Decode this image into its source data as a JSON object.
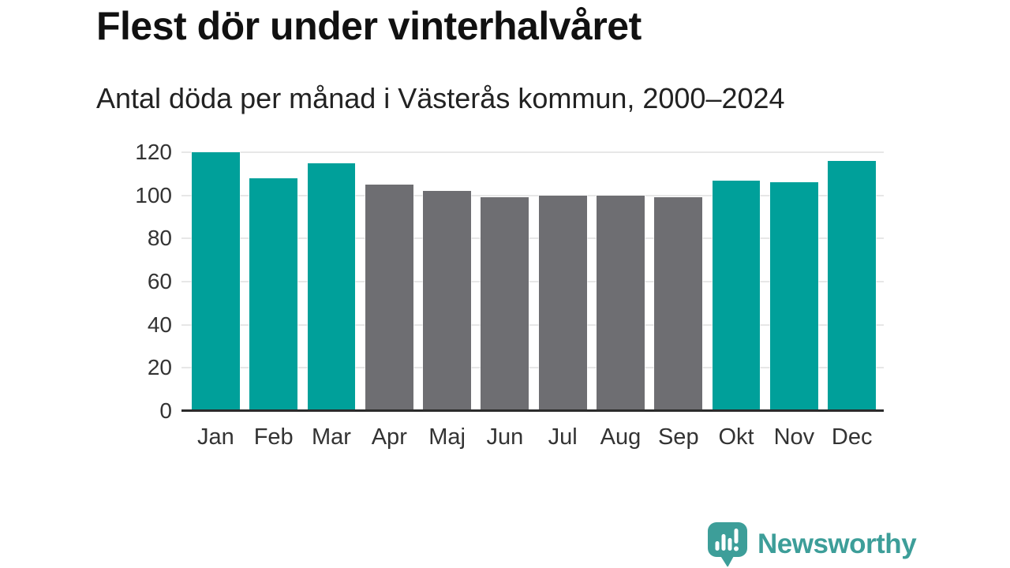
{
  "header": {
    "title": "Flest dör under vinterhalvåret",
    "subtitle": "Antal döda per månad i Västerås kommun, 2000–2024"
  },
  "chart_data": {
    "type": "bar",
    "title": "Flest dör under vinterhalvåret",
    "subtitle": "Antal döda per månad i Västerås kommun, 2000–2024",
    "categories": [
      "Jan",
      "Feb",
      "Mar",
      "Apr",
      "Maj",
      "Jun",
      "Jul",
      "Aug",
      "Sep",
      "Okt",
      "Nov",
      "Dec"
    ],
    "values": [
      120,
      108,
      115,
      105,
      102,
      99,
      100,
      100,
      99,
      107,
      106,
      116
    ],
    "bar_colors": [
      "teal",
      "teal",
      "teal",
      "gray",
      "gray",
      "gray",
      "gray",
      "gray",
      "gray",
      "teal",
      "teal",
      "teal"
    ],
    "palette": {
      "teal": "#00a09a",
      "gray": "#6e6e72"
    },
    "xlabel": "",
    "ylabel": "",
    "ylim": [
      0,
      120
    ],
    "yticks": [
      0,
      20,
      40,
      60,
      80,
      100,
      120
    ],
    "grid": "horizontal",
    "legend": "none"
  },
  "footer": {
    "brand": "Newsworthy",
    "brand_color": "#3d9e99"
  },
  "icons": {
    "logo": "newsworthy-speech-bubble-bar-chart-icon"
  }
}
